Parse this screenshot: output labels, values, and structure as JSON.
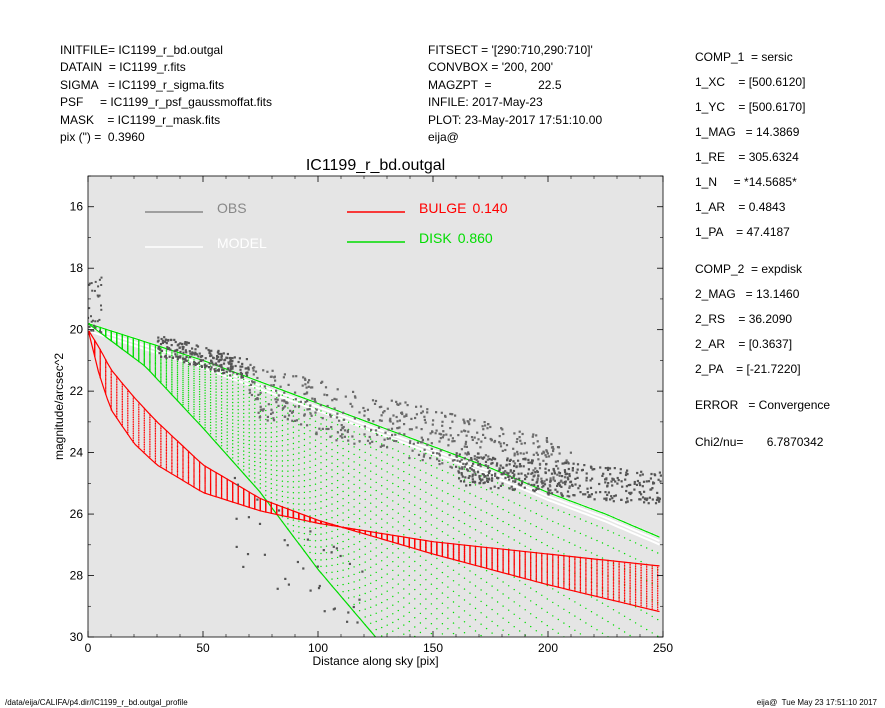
{
  "header": {
    "left": [
      "INITFILE= IC1199_r_bd.outgal",
      "DATAIN  = IC1199_r.fits",
      "SIGMA   = IC1199_r_sigma.fits",
      "PSF     = IC1199_r_psf_gaussmoffat.fits",
      "MASK    = IC1199_r_mask.fits",
      "pix (\") =  0.3960"
    ],
    "middle": [
      "FITSECT = '[290:710,290:710]'",
      "CONVBOX = '200, 200'",
      "MAGZPT  =              22.5",
      "INFILE: 2017-May-23",
      "PLOT: 23-May-2017 17:51:10.00",
      "eija@"
    ]
  },
  "params": [
    "COMP_1  = sersic",
    "1_XC    = [500.6120]",
    "1_YC    = [500.6170]",
    "1_MAG   = 14.3869",
    "1_RE    = 305.6324",
    "1_N     = *14.5685*",
    "1_AR    = 0.4843",
    "1_PA    = 47.4187",
    "COMP_2  = expdisk",
    "2_MAG   = 13.1460",
    "2_RS    = 36.2090",
    "2_AR    = [0.3637]",
    "2_PA    = [-21.7220]",
    "ERROR   = Convergence",
    "Chi2/nu=       6.7870342"
  ],
  "footer": {
    "left": "/data/eija/CALIFA/p4.dir/IC1199_r_bd.outgal_profile",
    "right": "eija@  Tue May 23 17:51:10 2017"
  },
  "colors": {
    "background": "#e5e5e5",
    "obs": "#555555",
    "model": "#ffffff",
    "bulge": "#ff0000",
    "disk": "#00dd00"
  },
  "chart_data": {
    "type": "scatter",
    "title": "IC1199_r_bd.outgal",
    "xlabel": "Distance along sky [pix]",
    "ylabel": "magnitude/arcsec^2",
    "xlim": [
      0,
      250
    ],
    "ylim": [
      30,
      15
    ],
    "y_inverted": true,
    "xticks": [
      0,
      50,
      100,
      150,
      200,
      250
    ],
    "yticks": [
      16,
      18,
      20,
      22,
      24,
      26,
      28,
      30
    ],
    "legend": [
      {
        "name": "OBS",
        "value": "",
        "color": "#888888"
      },
      {
        "name": "MODEL",
        "value": "",
        "color": "#ffffff"
      },
      {
        "name": "BULGE",
        "value": "0.140",
        "color": "#ff0000"
      },
      {
        "name": "DISK",
        "value": "0.860",
        "color": "#00dd00"
      }
    ],
    "series": [
      {
        "name": "BULGE",
        "upper_envelope": {
          "x": [
            0,
            5,
            10,
            20,
            30,
            50,
            75,
            100,
            150,
            200,
            250
          ],
          "y": [
            20.0,
            21.5,
            22.6,
            23.7,
            24.4,
            25.3,
            25.9,
            26.3,
            26.9,
            27.3,
            27.7
          ]
        },
        "lower_envelope": {
          "x": [
            0,
            5,
            10,
            20,
            30,
            50,
            75,
            100,
            150,
            200,
            250
          ],
          "y": [
            20.0,
            20.6,
            21.3,
            22.2,
            23.0,
            24.4,
            25.5,
            26.2,
            27.3,
            28.3,
            29.2
          ]
        }
      },
      {
        "name": "DISK",
        "upper_envelope": {
          "x": [
            0,
            25,
            50,
            75,
            100,
            125,
            150,
            175,
            200,
            225,
            250
          ],
          "y": [
            19.8,
            20.4,
            21.0,
            21.7,
            22.4,
            23.1,
            23.8,
            24.5,
            25.3,
            26.0,
            26.8
          ]
        },
        "lower_envelope": {
          "x": [
            0,
            25,
            50,
            75,
            100,
            125
          ],
          "y": [
            19.8,
            21.2,
            23.2,
            25.3,
            27.8,
            30.0
          ]
        }
      },
      {
        "name": "OBS",
        "clusters": [
          {
            "x_range": [
              30,
              70
            ],
            "y_center_start": 20.5,
            "y_center_end": 21.3
          },
          {
            "x_range": [
              70,
              210
            ],
            "y_center_start": 22.0,
            "y_center_end": 24.6
          },
          {
            "x_range": [
              160,
              250
            ],
            "y_center_start": 24.5,
            "y_center_end": 25.2
          },
          {
            "x_range": [
              60,
              120
            ],
            "y_center_start": 26.0,
            "y_center_end": 29.0
          }
        ]
      }
    ]
  }
}
